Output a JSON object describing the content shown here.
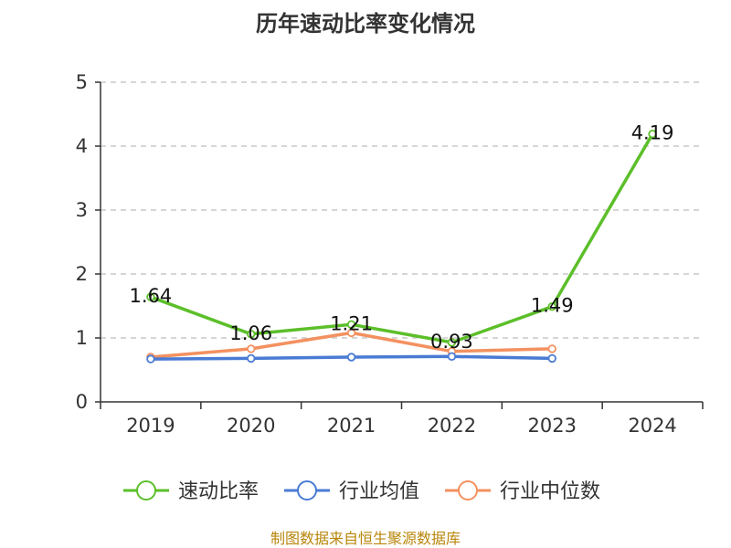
{
  "chart_data": {
    "type": "line",
    "title": "历年速动比率变化情况",
    "categories": [
      "2019",
      "2020",
      "2021",
      "2022",
      "2023",
      "2024"
    ],
    "ylim": [
      0,
      5
    ],
    "yticks": [
      "0",
      "1",
      "2",
      "3",
      "4",
      "5"
    ],
    "grid": "horizontal dashed",
    "legend_position": "bottom",
    "series": [
      {
        "name": "速动比率",
        "color": "#5cbf2a",
        "values": [
          1.64,
          1.06,
          1.21,
          0.93,
          1.49,
          4.19
        ],
        "labels": [
          "1.64",
          "1.06",
          "1.21",
          "0.93",
          "1.49",
          "4.19"
        ]
      },
      {
        "name": "行业均值",
        "color": "#4a7bd4",
        "values": [
          0.67,
          0.68,
          0.7,
          0.71,
          0.68,
          null
        ]
      },
      {
        "name": "行业中位数",
        "color": "#f39160",
        "values": [
          0.7,
          0.83,
          1.08,
          0.79,
          0.83,
          null
        ]
      }
    ]
  },
  "source": "制图数据来自恒生聚源数据库"
}
